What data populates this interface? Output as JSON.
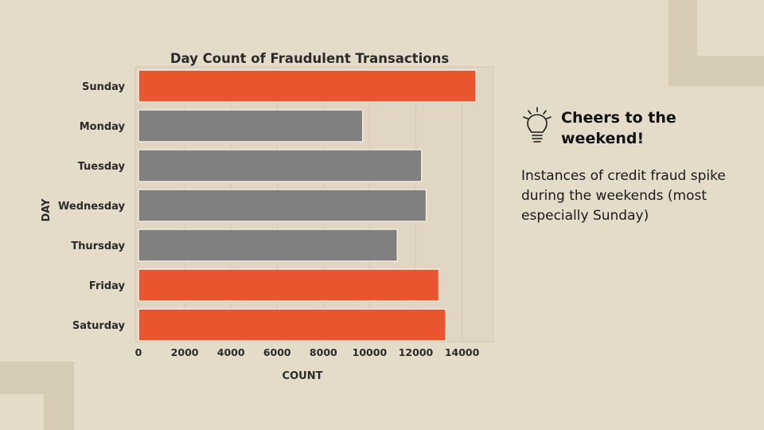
{
  "slide": {
    "background_color": "#e4dbc9",
    "accent_decoration_color": "#d6cbb5"
  },
  "callout": {
    "icon": "lightbulb-icon",
    "title": "Cheers to the weekend!",
    "body": "Instances of credit fraud spike during the weekends (most especially Sunday)"
  },
  "chart_data": {
    "type": "bar",
    "orientation": "horizontal",
    "title": "Day Count of Fraudulent Transactions",
    "xlabel": "COUNT",
    "ylabel": "DAY",
    "categories": [
      "Sunday",
      "Monday",
      "Tuesday",
      "Wednesday",
      "Thursday",
      "Friday",
      "Saturday"
    ],
    "values": [
      14600,
      9700,
      12250,
      12450,
      11200,
      13000,
      13300
    ],
    "highlight": [
      true,
      false,
      false,
      false,
      false,
      true,
      true
    ],
    "colors": {
      "highlight": "#e9552f",
      "default": "#808080"
    },
    "xlim": [
      0,
      15000
    ],
    "xticks": [
      "0",
      "2000",
      "4000",
      "6000",
      "8000",
      "10000",
      "12000",
      "14000"
    ],
    "grid": true,
    "legend": "none"
  }
}
